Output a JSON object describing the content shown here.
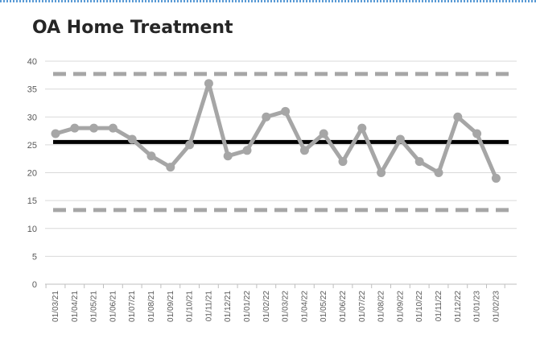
{
  "chart_data": {
    "type": "line",
    "title": "OA Home Treatment",
    "xlabel": "",
    "ylabel": "",
    "ylim": [
      0,
      40
    ],
    "yticks": [
      0,
      5,
      10,
      15,
      20,
      25,
      30,
      35,
      40
    ],
    "grid": true,
    "legend": "none",
    "categories": [
      "01/03/21",
      "01/04/21",
      "01/05/21",
      "01/06/21",
      "01/07/21",
      "01/08/21",
      "01/09/21",
      "01/10/21",
      "01/11/21",
      "01/12/21",
      "01/01/22",
      "01/02/22",
      "01/03/22",
      "01/04/22",
      "01/05/22",
      "01/06/22",
      "01/07/22",
      "01/08/22",
      "01/09/22",
      "01/10/22",
      "01/11/22",
      "01/12/22",
      "01/01/23",
      "01/02/23"
    ],
    "series": [
      {
        "style": "solid-markers",
        "color": "#a6a6a6",
        "values": [
          27,
          28,
          28,
          28,
          26,
          23,
          21,
          25,
          36,
          23,
          24,
          30,
          31,
          24,
          27,
          22,
          28,
          20,
          26,
          22,
          20,
          30,
          27,
          19
        ]
      },
      {
        "style": "solid",
        "color": "#000000",
        "values": [
          25.5,
          25.5,
          25.5,
          25.5,
          25.5,
          25.5,
          25.5,
          25.5,
          25.5,
          25.5,
          25.5,
          25.5,
          25.5,
          25.5,
          25.5,
          25.5,
          25.5,
          25.5,
          25.5,
          25.5,
          25.5,
          25.5,
          25.5,
          25.5
        ]
      },
      {
        "style": "dashed",
        "color": "#a6a6a6",
        "values": [
          37.7,
          37.7,
          37.7,
          37.7,
          37.7,
          37.7,
          37.7,
          37.7,
          37.7,
          37.7,
          37.7,
          37.7,
          37.7,
          37.7,
          37.7,
          37.7,
          37.7,
          37.7,
          37.7,
          37.7,
          37.7,
          37.7,
          37.7,
          37.7
        ]
      },
      {
        "style": "dashed",
        "color": "#a6a6a6",
        "values": [
          13.3,
          13.3,
          13.3,
          13.3,
          13.3,
          13.3,
          13.3,
          13.3,
          13.3,
          13.3,
          13.3,
          13.3,
          13.3,
          13.3,
          13.3,
          13.3,
          13.3,
          13.3,
          13.3,
          13.3,
          13.3,
          13.3,
          13.3,
          13.3
        ]
      }
    ]
  }
}
